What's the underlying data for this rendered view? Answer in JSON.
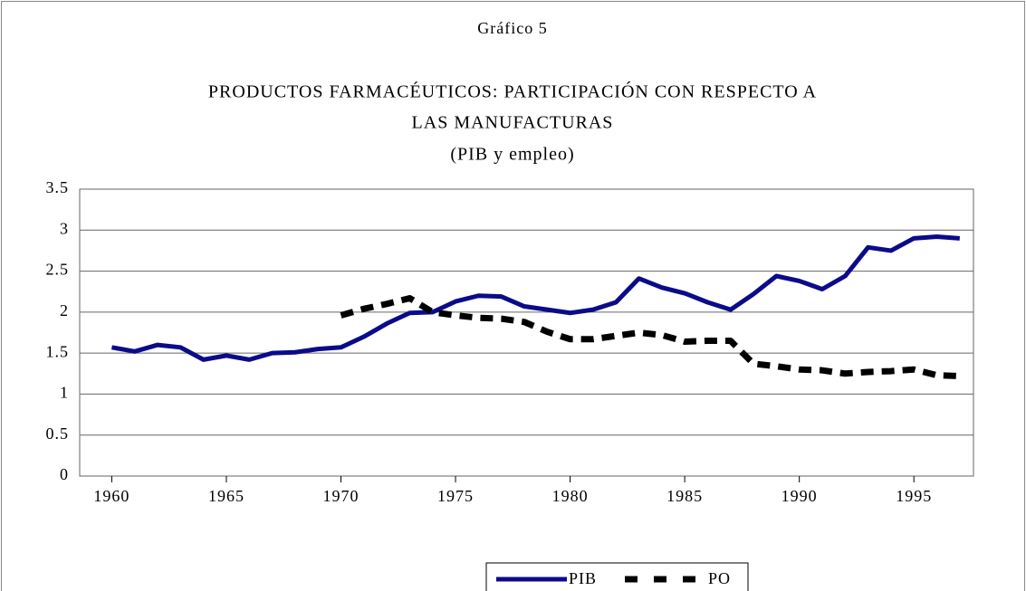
{
  "chart_data": {
    "type": "line",
    "title": "Gráfico 5",
    "subtitle": [
      "PRODUCTOS FARMACÉUTICOS:  PARTICIPACIÓN CON RESPECTO A",
      "LAS MANUFACTURAS",
      "(PIB y empleo)"
    ],
    "x": [
      1960,
      1961,
      1962,
      1963,
      1964,
      1965,
      1966,
      1967,
      1968,
      1969,
      1970,
      1971,
      1972,
      1973,
      1974,
      1975,
      1976,
      1977,
      1978,
      1979,
      1980,
      1981,
      1982,
      1983,
      1984,
      1985,
      1986,
      1987,
      1988,
      1989,
      1990,
      1991,
      1992,
      1993,
      1994,
      1995,
      1996,
      1997
    ],
    "series": [
      {
        "name": "PIB",
        "color": "#0b0b8a",
        "dashed": false,
        "values": [
          1.57,
          1.52,
          1.6,
          1.57,
          1.42,
          1.47,
          1.42,
          1.5,
          1.51,
          1.55,
          1.57,
          1.7,
          1.86,
          1.99,
          2.0,
          2.13,
          2.2,
          2.19,
          2.07,
          2.03,
          1.99,
          2.03,
          2.12,
          2.41,
          2.3,
          2.23,
          2.12,
          2.03,
          2.22,
          2.44,
          2.38,
          2.28,
          2.44,
          2.79,
          2.75,
          2.9,
          2.92,
          2.9
        ]
      },
      {
        "name": "PO",
        "color": "#000000",
        "dashed": true,
        "values": [
          null,
          null,
          null,
          null,
          null,
          null,
          null,
          null,
          null,
          null,
          1.96,
          2.04,
          2.1,
          2.17,
          2.0,
          1.96,
          1.93,
          1.92,
          1.88,
          1.76,
          1.67,
          1.67,
          1.71,
          1.75,
          1.72,
          1.64,
          1.65,
          1.65,
          1.37,
          1.34,
          1.3,
          1.29,
          1.25,
          1.27,
          1.28,
          1.3,
          1.23,
          1.22
        ]
      }
    ],
    "xlim": [
      1958.6,
      1997.6
    ],
    "xticks": [
      1960,
      1965,
      1970,
      1975,
      1980,
      1985,
      1990,
      1995
    ],
    "ylim": [
      0,
      3.5
    ],
    "yticks": [
      0,
      0.5,
      1,
      1.5,
      2,
      2.5,
      3,
      3.5
    ],
    "grid": true,
    "legend": "bottom"
  }
}
